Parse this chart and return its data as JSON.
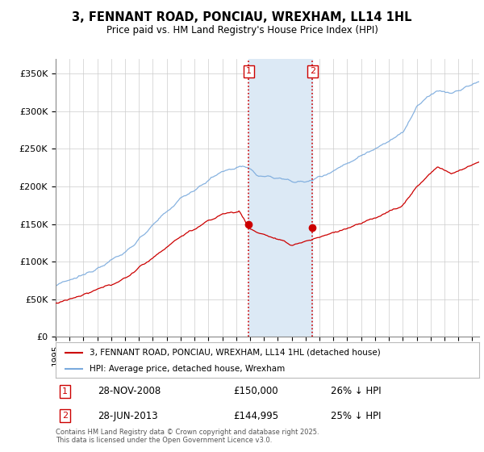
{
  "title": "3, FENNANT ROAD, PONCIAU, WREXHAM, LL14 1HL",
  "subtitle": "Price paid vs. HM Land Registry's House Price Index (HPI)",
  "ylabel_ticks": [
    "£0",
    "£50K",
    "£100K",
    "£150K",
    "£200K",
    "£250K",
    "£300K",
    "£350K"
  ],
  "ytick_values": [
    0,
    50000,
    100000,
    150000,
    200000,
    250000,
    300000,
    350000
  ],
  "ylim": [
    0,
    370000
  ],
  "xlim_start": 1995.0,
  "xlim_end": 2025.5,
  "sale1_date": 2008.91,
  "sale1_price": 150000,
  "sale2_date": 2013.49,
  "sale2_price": 144995,
  "shade_color": "#dce9f5",
  "vline_color": "#cc0000",
  "hpi_color": "#7aaadd",
  "price_color": "#cc0000",
  "legend_label_price": "3, FENNANT ROAD, PONCIAU, WREXHAM, LL14 1HL (detached house)",
  "legend_label_hpi": "HPI: Average price, detached house, Wrexham",
  "annotation1_date": "28-NOV-2008",
  "annotation1_price": "£150,000",
  "annotation1_pct": "26% ↓ HPI",
  "annotation2_date": "28-JUN-2013",
  "annotation2_price": "£144,995",
  "annotation2_pct": "25% ↓ HPI",
  "footer": "Contains HM Land Registry data © Crown copyright and database right 2025.\nThis data is licensed under the Open Government Licence v3.0.",
  "background_color": "#ffffff",
  "plot_bg_color": "#ffffff",
  "grid_color": "#cccccc"
}
